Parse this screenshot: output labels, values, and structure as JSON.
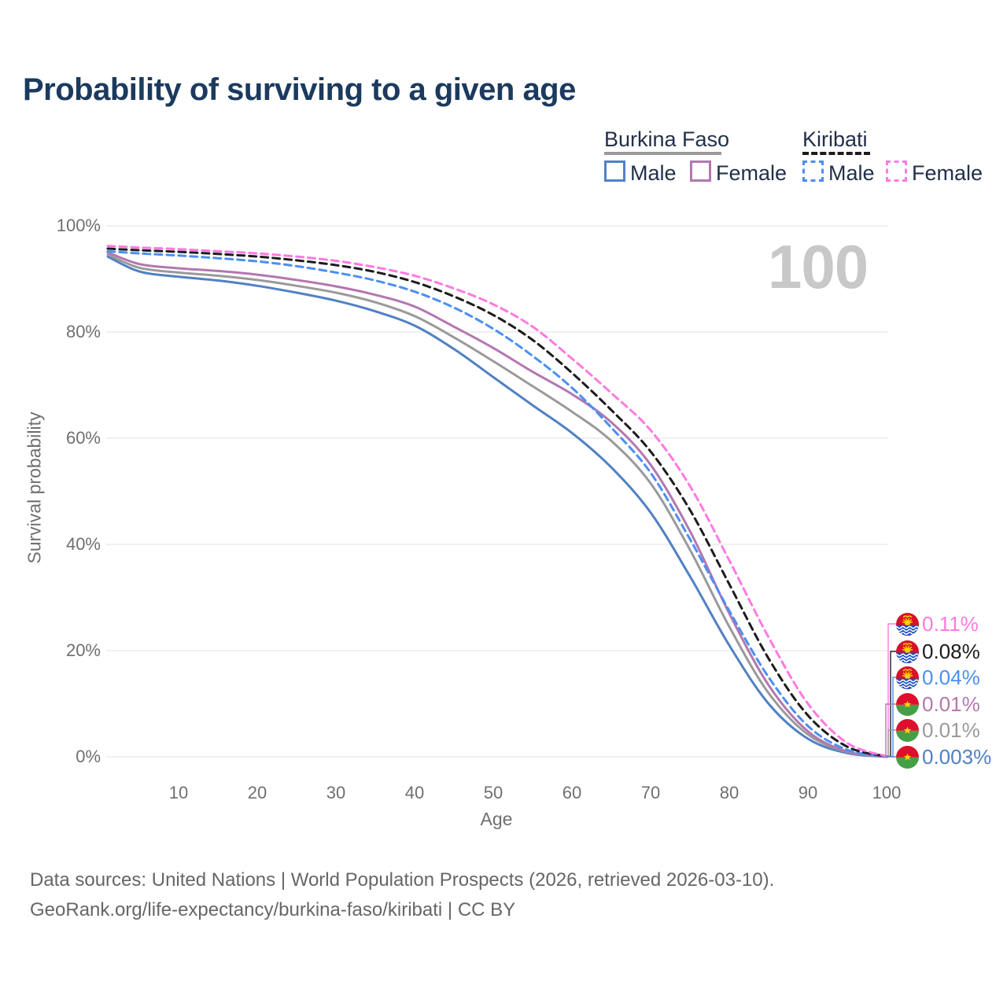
{
  "title": "Probability of surviving to a given age",
  "watermark": "100",
  "legend": {
    "groups": [
      {
        "label": "Burkina Faso",
        "underline_style": "solid",
        "underline_color": "#9a9a9a",
        "items": [
          {
            "label": "Male",
            "color": "#5081c3",
            "line": "solid"
          },
          {
            "label": "Female",
            "color": "#b377b0",
            "line": "solid"
          }
        ]
      },
      {
        "label": "Kiribati",
        "underline_style": "dashed",
        "underline_color": "#1c1c1c",
        "items": [
          {
            "label": "Male",
            "color": "#4b8ff2",
            "line": "dashed"
          },
          {
            "label": "Female",
            "color": "#ff79e1",
            "line": "dashed"
          }
        ]
      }
    ]
  },
  "chart_data": {
    "type": "line",
    "title": "Probability of surviving to a given age",
    "x_label": "Age",
    "y_label": "Survival probability",
    "xlim": [
      1,
      100
    ],
    "ylim": [
      0,
      100
    ],
    "grid": "horizontal-only",
    "x_ticks": [
      10,
      20,
      30,
      40,
      50,
      60,
      70,
      80,
      90,
      100
    ],
    "y_tick_values": [
      0,
      20,
      40,
      60,
      80,
      100
    ],
    "y_tick_labels": [
      "0%",
      "20%",
      "40%",
      "60%",
      "80%",
      "100%"
    ],
    "ages": [
      1,
      5,
      10,
      15,
      20,
      25,
      30,
      35,
      40,
      45,
      50,
      55,
      60,
      65,
      70,
      75,
      80,
      85,
      90,
      95,
      100
    ],
    "series": [
      {
        "name": "Burkina Faso Male",
        "country": "burkina-faso",
        "sex": "male",
        "line": "solid",
        "color": "#5081c3",
        "values": [
          94.2,
          91.4,
          90.4,
          89.7,
          88.7,
          87.4,
          85.9,
          83.9,
          81.2,
          76.8,
          71.5,
          66.2,
          61.0,
          54.5,
          46.0,
          34.0,
          21.0,
          10.0,
          3.4,
          0.7,
          0.003
        ]
      },
      {
        "name": "Burkina Faso Both sexes",
        "country": "burkina-faso",
        "sex": "both",
        "line": "solid",
        "color": "#9a9a9a",
        "values": [
          94.6,
          92.1,
          91.2,
          90.6,
          89.8,
          88.7,
          87.4,
          85.6,
          83.0,
          79.0,
          74.5,
          69.8,
          65.0,
          59.5,
          51.5,
          39.0,
          24.5,
          12.0,
          4.2,
          0.9,
          0.01
        ]
      },
      {
        "name": "Burkina Faso Female",
        "country": "burkina-faso",
        "sex": "female",
        "line": "solid",
        "color": "#b377b0",
        "values": [
          95.0,
          92.8,
          92.0,
          91.5,
          90.8,
          89.8,
          88.6,
          87.0,
          84.8,
          81.0,
          77.0,
          72.5,
          68.3,
          63.0,
          55.0,
          42.5,
          27.0,
          13.5,
          4.8,
          1.0,
          0.01
        ]
      },
      {
        "name": "Kiribati Male",
        "country": "kiribati",
        "sex": "male",
        "line": "dashed",
        "color": "#4b8ff2",
        "values": [
          95.2,
          94.8,
          94.4,
          93.9,
          93.3,
          92.4,
          91.2,
          89.7,
          87.6,
          84.6,
          80.6,
          75.5,
          69.5,
          62.0,
          53.5,
          41.0,
          27.5,
          15.0,
          5.8,
          1.3,
          0.04
        ]
      },
      {
        "name": "Kiribati Both sexes",
        "country": "kiribati",
        "sex": "both",
        "line": "dashed",
        "color": "#1c1c1c",
        "values": [
          95.7,
          95.4,
          95.1,
          94.7,
          94.2,
          93.5,
          92.6,
          91.3,
          89.4,
          86.7,
          83.2,
          78.5,
          72.3,
          65.3,
          57.5,
          46.5,
          32.5,
          18.5,
          7.8,
          1.9,
          0.08
        ]
      },
      {
        "name": "Kiribati Female",
        "country": "kiribati",
        "sex": "female",
        "line": "dashed",
        "color": "#ff79e1",
        "values": [
          96.2,
          95.9,
          95.6,
          95.2,
          94.8,
          94.2,
          93.4,
          92.2,
          90.6,
          88.2,
          85.2,
          81.0,
          75.0,
          68.5,
          61.5,
          51.0,
          37.0,
          22.5,
          10.0,
          2.6,
          0.11
        ]
      }
    ],
    "end_labels": [
      {
        "series": "Kiribati Female",
        "country": "kiribati",
        "value": "0.11%",
        "value_num": 0.11,
        "color": "#ff79e1"
      },
      {
        "series": "Kiribati Both sexes",
        "country": "kiribati",
        "value": "0.08%",
        "value_num": 0.08,
        "color": "#1c1c1c"
      },
      {
        "series": "Kiribati Male",
        "country": "kiribati",
        "value": "0.04%",
        "value_num": 0.04,
        "color": "#4b8ff2"
      },
      {
        "series": "Burkina Faso Female",
        "country": "burkina-faso",
        "value": "0.01%",
        "value_num": 0.01,
        "color": "#b377b0"
      },
      {
        "series": "Burkina Faso Both sexes",
        "country": "burkina-faso",
        "value": "0.01%",
        "value_num": 0.01,
        "color": "#9a9a9a"
      },
      {
        "series": "Burkina Faso Male",
        "country": "burkina-faso",
        "value": "0.003%",
        "value_num": 0.003,
        "color": "#5081c3"
      }
    ]
  },
  "footer": {
    "line1": "Data sources: United Nations | World Population Prospects (2026, retrieved 2026-03-10).",
    "line2": "GeoRank.org/life-expectancy/burkina-faso/kiribati | CC BY"
  }
}
